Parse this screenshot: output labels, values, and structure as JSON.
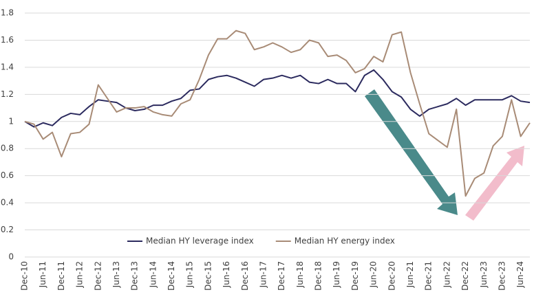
{
  "chart_data": {
    "type": "line",
    "categories": [
      "Dec-10",
      null,
      "Jun-11",
      null,
      "Dec-11",
      null,
      "Jun-12",
      null,
      "Dec-12",
      null,
      "Jun-13",
      null,
      "Dec-13",
      null,
      "Jun-14",
      null,
      "Dec-14",
      null,
      "Jun-15",
      null,
      "Dec-15",
      null,
      "Jun-16",
      null,
      "Dec-16",
      null,
      "Jun-17",
      null,
      "Dec-17",
      null,
      "Jun-18",
      null,
      "Dec-18",
      null,
      "Jun-19",
      null,
      "Dec-19",
      null,
      "Jun-20",
      null,
      "Dec-20",
      null,
      "Jun-21",
      null,
      "Dec-21",
      null,
      "Jun-22",
      null,
      "Dec-22",
      null,
      "Jun-23",
      null,
      "Dec-23",
      null,
      "Jun-24",
      null
    ],
    "series": [
      {
        "name": "Median HY leverage index",
        "color": "#2b2a5e",
        "values": [
          1.0,
          0.96,
          0.99,
          0.97,
          1.03,
          1.06,
          1.05,
          1.11,
          1.16,
          1.15,
          1.14,
          1.1,
          1.08,
          1.09,
          1.12,
          1.12,
          1.15,
          1.17,
          1.23,
          1.24,
          1.31,
          1.33,
          1.34,
          1.32,
          1.29,
          1.26,
          1.31,
          1.32,
          1.34,
          1.32,
          1.34,
          1.29,
          1.28,
          1.31,
          1.28,
          1.28,
          1.22,
          1.34,
          1.38,
          1.31,
          1.22,
          1.18,
          1.09,
          1.04,
          1.09,
          1.11,
          1.13,
          1.17,
          1.12,
          1.16,
          1.16,
          1.16,
          1.16,
          1.19,
          1.15,
          1.14
        ]
      },
      {
        "name": "Median HY energy index",
        "color": "#a88b76",
        "values": [
          1.0,
          0.98,
          0.87,
          0.92,
          0.74,
          0.91,
          0.92,
          0.98,
          1.27,
          1.17,
          1.07,
          1.1,
          1.1,
          1.11,
          1.07,
          1.05,
          1.04,
          1.13,
          1.16,
          1.31,
          1.49,
          1.61,
          1.61,
          1.67,
          1.65,
          1.53,
          1.55,
          1.58,
          1.55,
          1.51,
          1.53,
          1.6,
          1.58,
          1.48,
          1.49,
          1.45,
          1.36,
          1.39,
          1.48,
          1.44,
          1.64,
          1.66,
          1.36,
          1.13,
          0.91,
          0.86,
          0.81,
          1.09,
          0.45,
          0.58,
          0.62,
          0.82,
          0.89,
          1.16,
          0.89,
          0.99
        ]
      }
    ],
    "ylim": [
      0,
      1.8
    ],
    "yticks": [
      0,
      0.2,
      0.4,
      0.6,
      0.8,
      1,
      1.2,
      1.4,
      1.6,
      1.8
    ],
    "grid": true,
    "legend": "bottom"
  }
}
